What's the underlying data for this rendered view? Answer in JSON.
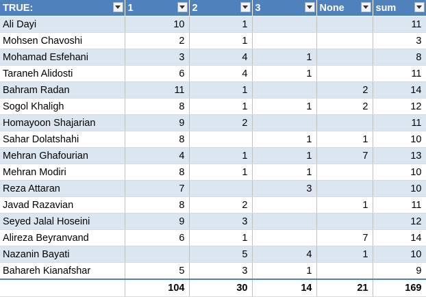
{
  "table": {
    "headers": [
      "TRUE:",
      "1",
      "2",
      "3",
      "None",
      "sum"
    ],
    "rows": [
      [
        "Ali Dayi",
        "10",
        "1",
        "",
        "",
        "11"
      ],
      [
        "Mohsen Chavoshi",
        "2",
        "1",
        "",
        "",
        "3"
      ],
      [
        "Mohamad Esfehani",
        "3",
        "4",
        "1",
        "",
        "8"
      ],
      [
        "Taraneh Alidosti",
        "6",
        "4",
        "1",
        "",
        "11"
      ],
      [
        "Bahram Radan",
        "11",
        "1",
        "",
        "2",
        "14"
      ],
      [
        "Sogol Khaligh",
        "8",
        "1",
        "1",
        "2",
        "12"
      ],
      [
        "Homayoon Shajarian",
        "9",
        "2",
        "",
        "",
        "11"
      ],
      [
        "Sahar Dolatshahi",
        "8",
        "",
        "1",
        "1",
        "10"
      ],
      [
        "Mehran Ghafourian",
        "4",
        "1",
        "1",
        "7",
        "13"
      ],
      [
        "Mehran Modiri",
        "8",
        "1",
        "1",
        "",
        "10"
      ],
      [
        "Reza Attaran",
        "7",
        "",
        "3",
        "",
        "10"
      ],
      [
        "Javad Razavian",
        "8",
        "2",
        "",
        "1",
        "11"
      ],
      [
        "Seyed Jalal Hoseini",
        "9",
        "3",
        "",
        "",
        "12"
      ],
      [
        "Alireza Beyranvand",
        "6",
        "1",
        "",
        "7",
        "14"
      ],
      [
        "Nazanin Bayati",
        "",
        "5",
        "4",
        "1",
        "10"
      ],
      [
        "Bahareh Kianafshar",
        "5",
        "3",
        "1",
        "",
        "9"
      ]
    ],
    "totals": [
      "",
      "104",
      "30",
      "14",
      "21",
      "169"
    ]
  },
  "colors": {
    "header_bg": "#4f81bd",
    "band_bg": "#dce6f1",
    "header_text": "#ffffff"
  },
  "icons": {
    "filter": "filter-dropdown-arrow-icon"
  }
}
